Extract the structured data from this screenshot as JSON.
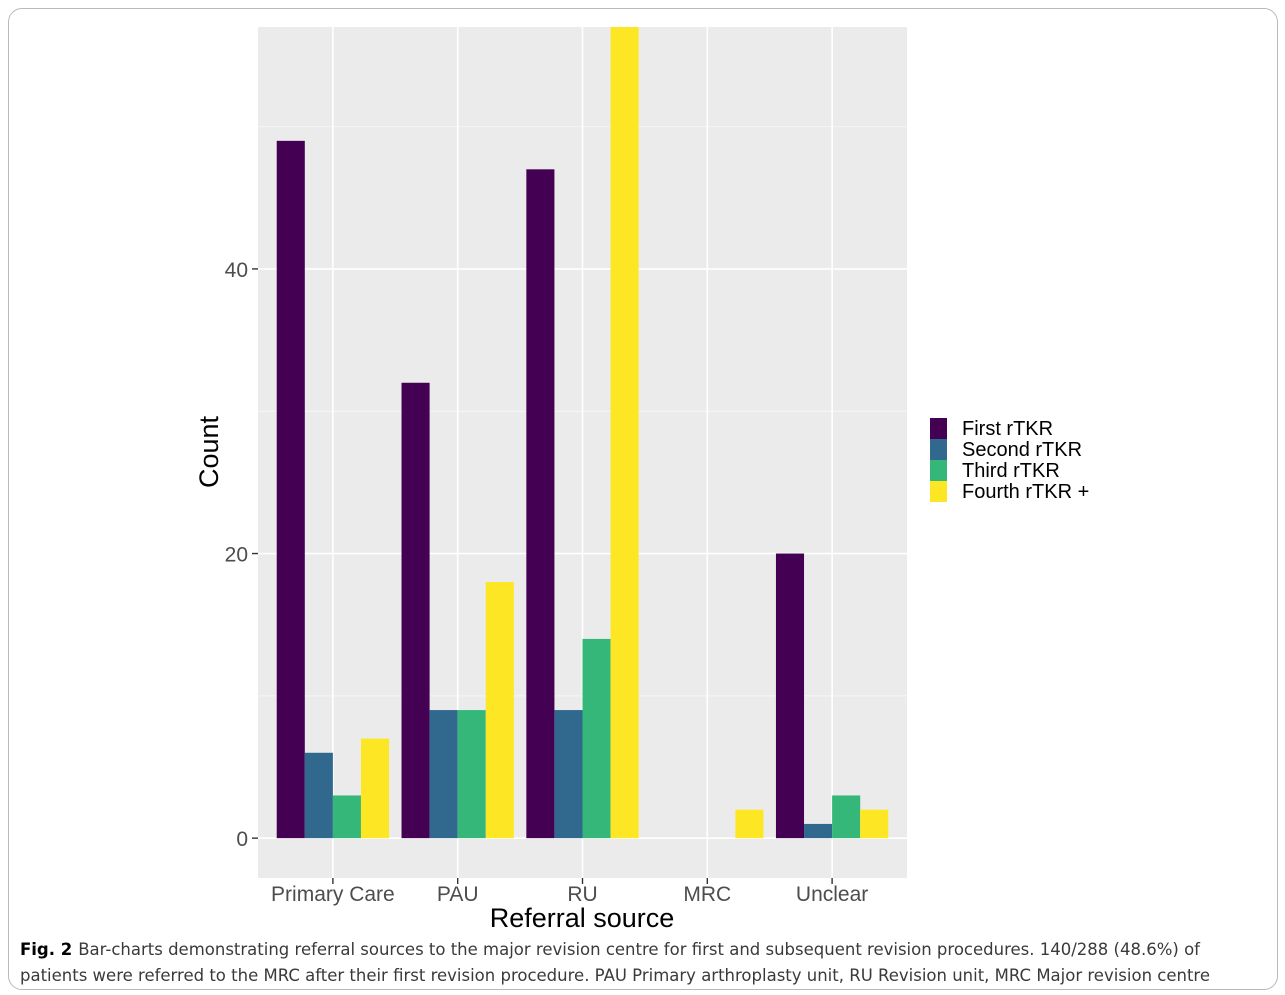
{
  "chart_data": {
    "type": "bar",
    "xlabel": "Referral source",
    "ylabel": "Count",
    "categories": [
      "Primary Care",
      "PAU",
      "RU",
      "MRC",
      "Unclear"
    ],
    "yticks": [
      0,
      20,
      40
    ],
    "ylim": [
      -2.8,
      57
    ],
    "grid": true,
    "legend_position": "right",
    "series": [
      {
        "name": "First rTKR",
        "color": "#440154",
        "values": [
          49,
          32,
          47,
          0,
          20
        ]
      },
      {
        "name": "Second rTKR",
        "color": "#31688e",
        "values": [
          6,
          9,
          9,
          0,
          1
        ]
      },
      {
        "name": "Third rTKR",
        "color": "#35b779",
        "values": [
          3,
          9,
          14,
          0,
          3
        ]
      },
      {
        "name": "Fourth rTKR +",
        "color": "#fde725",
        "values": [
          7,
          18,
          57,
          2,
          2
        ]
      }
    ],
    "panel_background": "#ebebeb"
  },
  "caption": {
    "label": "Fig. 2",
    "text": "Bar-charts demonstrating referral sources to the major revision centre for first and subsequent revision procedures. 140/288 (48.6%) of patients were referred to the MRC after their first revision procedure. PAU Primary arthroplasty unit, RU Revision unit, MRC Major revision centre"
  }
}
